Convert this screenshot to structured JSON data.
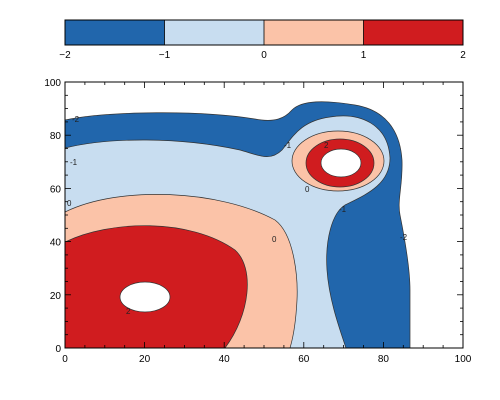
{
  "chart_data": {
    "type": "contour",
    "title": "",
    "xlabel": "",
    "ylabel": "",
    "xlim": [
      0,
      100
    ],
    "ylim": [
      0,
      100
    ],
    "x_ticks": [
      0,
      20,
      40,
      60,
      80,
      100
    ],
    "y_ticks": [
      0,
      20,
      40,
      60,
      80,
      100
    ],
    "grid": false,
    "colorbar": {
      "placement": "top",
      "levels": [
        -2,
        -1,
        0,
        1,
        2
      ],
      "tick_labels": [
        "−2",
        "−1",
        "0",
        "1",
        "2"
      ],
      "bands": [
        {
          "range": [
            -2,
            -1
          ],
          "color": "#2166ac"
        },
        {
          "range": [
            -1,
            0
          ],
          "color": "#c8ddf0"
        },
        {
          "range": [
            0,
            1
          ],
          "color": "#fbc3a8"
        },
        {
          "range": [
            1,
            2
          ],
          "color": "#d01c1f"
        }
      ]
    },
    "contour_labels": [
      {
        "text": "-2",
        "x": 3,
        "y": 87
      },
      {
        "text": "-1",
        "x": 2,
        "y": 70
      },
      {
        "text": "0",
        "x": 1,
        "y": 55
      },
      {
        "text": "0",
        "x": 53,
        "y": 41
      },
      {
        "text": "-1",
        "x": 55,
        "y": 75
      },
      {
        "text": "2",
        "x": 66,
        "y": 78
      },
      {
        "text": "0",
        "x": 61,
        "y": 59
      },
      {
        "text": "-1",
        "x": 70,
        "y": 52
      },
      {
        "text": "-2",
        "x": 85,
        "y": 41
      },
      {
        "text": "2",
        "x": 16,
        "y": 13
      }
    ]
  }
}
